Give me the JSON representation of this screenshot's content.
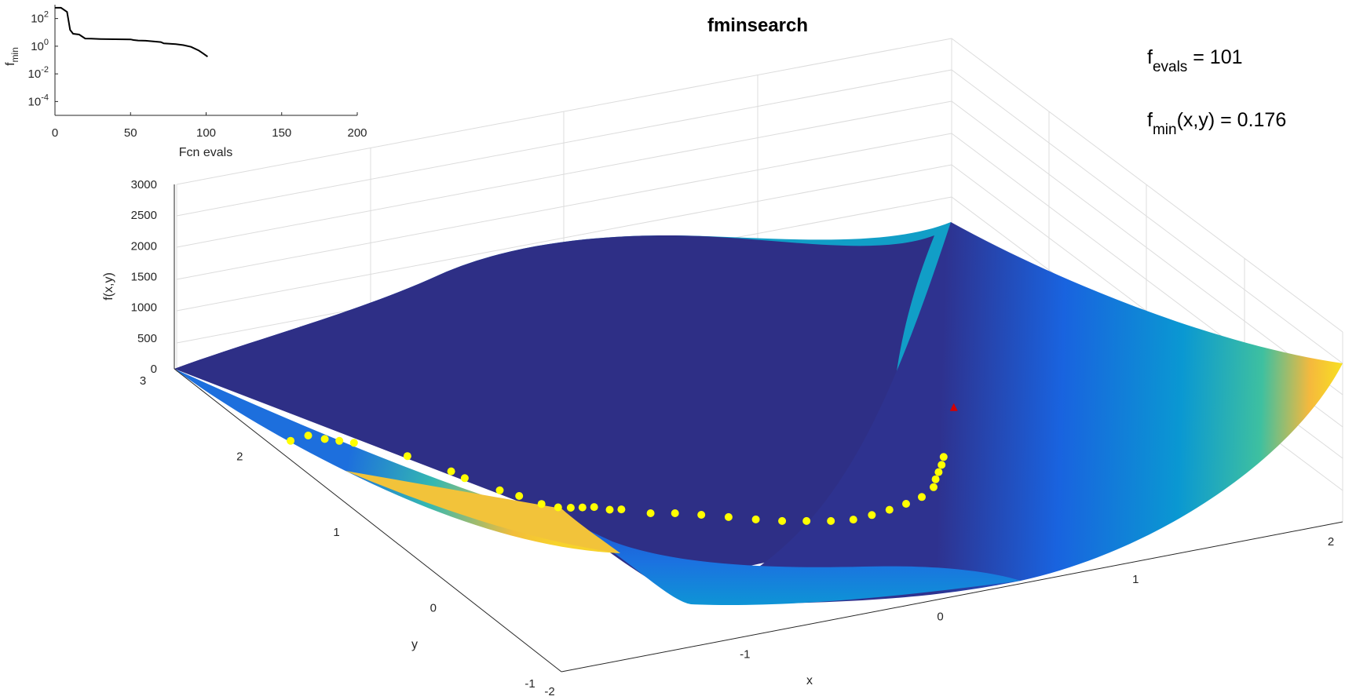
{
  "chart_data": [
    {
      "type": "surface",
      "title": "fminsearch",
      "xlabel": "x",
      "ylabel": "y",
      "zlabel": "f(x,y)",
      "xlim": [
        -2,
        2
      ],
      "ylim": [
        -1,
        3
      ],
      "zlim": [
        0,
        3000
      ],
      "x_ticks": [
        "-2",
        "-1",
        "0",
        "1",
        "2"
      ],
      "y_ticks": [
        "-1",
        "0",
        "1",
        "2",
        "3"
      ],
      "z_ticks": [
        "0",
        "500",
        "1000",
        "1500",
        "2000",
        "2500",
        "3000"
      ],
      "grid": true,
      "colormap": "parula",
      "series": [
        {
          "kind": "evaluated-points",
          "color": "#ffff00",
          "points": [
            [
              -1.9,
              2.0
            ],
            [
              -1.8,
              2.02
            ],
            [
              -1.75,
              1.95
            ],
            [
              -1.7,
              1.9
            ],
            [
              -1.65,
              1.85
            ],
            [
              -1.5,
              1.6
            ],
            [
              -1.4,
              1.35
            ],
            [
              -1.38,
              1.25
            ],
            [
              -1.3,
              1.05
            ],
            [
              -1.25,
              0.95
            ],
            [
              -1.2,
              0.82
            ],
            [
              -1.15,
              0.75
            ],
            [
              -1.1,
              0.72
            ],
            [
              -1.05,
              0.7
            ],
            [
              -1.0,
              0.68
            ],
            [
              -0.95,
              0.62
            ],
            [
              -0.9,
              0.6
            ],
            [
              -0.8,
              0.5
            ],
            [
              -0.7,
              0.45
            ],
            [
              -0.6,
              0.38
            ],
            [
              -0.5,
              0.3
            ],
            [
              -0.4,
              0.22
            ],
            [
              -0.3,
              0.15
            ],
            [
              -0.2,
              0.1
            ],
            [
              -0.1,
              0.05
            ],
            [
              0.0,
              0.02
            ],
            [
              0.1,
              0.03
            ],
            [
              0.2,
              0.05
            ],
            [
              0.3,
              0.08
            ],
            [
              0.4,
              0.12
            ],
            [
              0.5,
              0.2
            ],
            [
              0.55,
              0.28
            ],
            [
              0.6,
              0.35
            ],
            [
              0.65,
              0.42
            ],
            [
              0.7,
              0.5
            ]
          ]
        },
        {
          "kind": "minimum",
          "marker": "triangle",
          "color": "#d40000",
          "point": [
            1.0,
            1.0
          ]
        }
      ]
    },
    {
      "type": "line",
      "xlabel": "Fcn evals",
      "ylabel": "f_min",
      "xlim": [
        0,
        200
      ],
      "ylim_log10": [
        -5,
        3
      ],
      "yscale": "log",
      "x_ticks": [
        "0",
        "50",
        "100",
        "150",
        "200"
      ],
      "y_ticks": [
        "10^2",
        "10^0",
        "10^-2",
        "10^-4"
      ],
      "line_color": "#000000",
      "x": [
        0,
        4,
        8,
        10,
        12,
        16,
        20,
        24,
        30,
        40,
        50,
        52,
        55,
        60,
        70,
        72,
        80,
        85,
        90,
        95,
        98,
        101
      ],
      "y": [
        600,
        600,
        300,
        15,
        8,
        7,
        3.6,
        3.5,
        3.3,
        3.2,
        3.1,
        2.8,
        2.6,
        2.5,
        2.0,
        1.6,
        1.4,
        1.2,
        0.9,
        0.5,
        0.3,
        0.176
      ]
    }
  ],
  "annotations": {
    "fevals_main": "f",
    "fevals_sub": "evals",
    "fevals_rest": " = 101",
    "fmin_main": "f",
    "fmin_sub": "min",
    "fmin_rest": "(x,y) = 0.176"
  }
}
